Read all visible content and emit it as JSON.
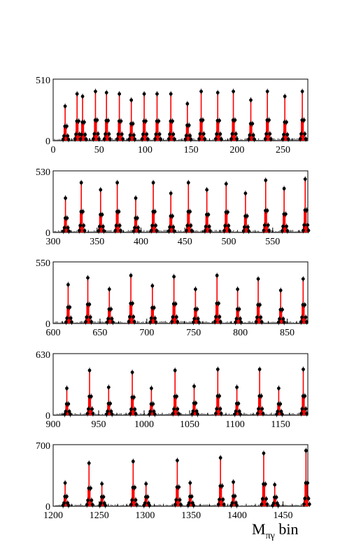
{
  "chart_data": [
    {
      "type": "bar",
      "panel": 1,
      "xlim": [
        0,
        277
      ],
      "ylim": [
        0,
        510
      ],
      "ymax_label": "510",
      "xticks": [
        0,
        50,
        100,
        150,
        200,
        250
      ],
      "xtick_labels": [
        "0",
        "50",
        "100",
        "150",
        "200",
        "250"
      ],
      "peaks": [
        {
          "x": 13,
          "height": 280
        },
        {
          "x": 26,
          "height": 380
        },
        {
          "x": 32,
          "height": 360
        },
        {
          "x": 46,
          "height": 400
        },
        {
          "x": 58,
          "height": 390
        },
        {
          "x": 72,
          "height": 380
        },
        {
          "x": 85,
          "height": 330
        },
        {
          "x": 99,
          "height": 380
        },
        {
          "x": 113,
          "height": 380
        },
        {
          "x": 128,
          "height": 380
        },
        {
          "x": 146,
          "height": 300
        },
        {
          "x": 161,
          "height": 400
        },
        {
          "x": 179,
          "height": 390
        },
        {
          "x": 196,
          "height": 400
        },
        {
          "x": 215,
          "height": 330
        },
        {
          "x": 233,
          "height": 400
        },
        {
          "x": 252,
          "height": 360
        },
        {
          "x": 271,
          "height": 400
        }
      ]
    },
    {
      "type": "bar",
      "panel": 2,
      "xlim": [
        300,
        590
      ],
      "ylim": [
        0,
        530
      ],
      "ymax_label": "530",
      "xticks": [
        300,
        350,
        400,
        450,
        500,
        550
      ],
      "xtick_labels": [
        "300",
        "350",
        "400",
        "450",
        "500",
        "550"
      ],
      "peaks": [
        {
          "x": 314,
          "height": 290
        },
        {
          "x": 332,
          "height": 420
        },
        {
          "x": 354,
          "height": 360
        },
        {
          "x": 373,
          "height": 420
        },
        {
          "x": 394,
          "height": 290
        },
        {
          "x": 414,
          "height": 420
        },
        {
          "x": 434,
          "height": 330
        },
        {
          "x": 454,
          "height": 420
        },
        {
          "x": 475,
          "height": 360
        },
        {
          "x": 497,
          "height": 410
        },
        {
          "x": 519,
          "height": 330
        },
        {
          "x": 542,
          "height": 440
        },
        {
          "x": 563,
          "height": 370
        },
        {
          "x": 587,
          "height": 450
        }
      ]
    },
    {
      "type": "bar",
      "panel": 3,
      "xlim": [
        600,
        872
      ],
      "ylim": [
        0,
        550
      ],
      "ymax_label": "550",
      "xticks": [
        600,
        650,
        700,
        750,
        800,
        850
      ],
      "xtick_labels": [
        "600",
        "650",
        "700",
        "750",
        "800",
        "850"
      ],
      "peaks": [
        {
          "x": 616,
          "height": 340
        },
        {
          "x": 637,
          "height": 400
        },
        {
          "x": 660,
          "height": 300
        },
        {
          "x": 683,
          "height": 420
        },
        {
          "x": 706,
          "height": 330
        },
        {
          "x": 729,
          "height": 410
        },
        {
          "x": 752,
          "height": 300
        },
        {
          "x": 775,
          "height": 420
        },
        {
          "x": 797,
          "height": 300
        },
        {
          "x": 819,
          "height": 390
        },
        {
          "x": 843,
          "height": 290
        },
        {
          "x": 867,
          "height": 390
        }
      ]
    },
    {
      "type": "bar",
      "panel": 4,
      "xlim": [
        900,
        1180
      ],
      "ylim": [
        0,
        630
      ],
      "ymax_label": "630",
      "xticks": [
        900,
        950,
        1000,
        1050,
        1100,
        1150
      ],
      "xtick_labels": [
        "900",
        "950",
        "1000",
        "1050",
        "1100",
        "1150"
      ],
      "peaks": [
        {
          "x": 915,
          "height": 270
        },
        {
          "x": 940,
          "height": 450
        },
        {
          "x": 961,
          "height": 280
        },
        {
          "x": 987,
          "height": 430
        },
        {
          "x": 1008,
          "height": 270
        },
        {
          "x": 1034,
          "height": 450
        },
        {
          "x": 1055,
          "height": 290
        },
        {
          "x": 1081,
          "height": 460
        },
        {
          "x": 1102,
          "height": 280
        },
        {
          "x": 1127,
          "height": 460
        },
        {
          "x": 1148,
          "height": 270
        },
        {
          "x": 1175,
          "height": 460
        }
      ]
    },
    {
      "type": "bar",
      "panel": 5,
      "xlim": [
        1200,
        1477
      ],
      "ylim": [
        0,
        700
      ],
      "ymax_label": "700",
      "xticks": [
        1200,
        1250,
        1300,
        1350,
        1400,
        1450
      ],
      "xtick_labels": [
        "1200",
        "1250",
        "1300",
        "1350",
        "1400",
        "1450"
      ],
      "peaks": [
        {
          "x": 1213,
          "height": 260
        },
        {
          "x": 1239,
          "height": 480
        },
        {
          "x": 1253,
          "height": 250
        },
        {
          "x": 1287,
          "height": 500
        },
        {
          "x": 1301,
          "height": 250
        },
        {
          "x": 1335,
          "height": 510
        },
        {
          "x": 1349,
          "height": 260
        },
        {
          "x": 1382,
          "height": 540
        },
        {
          "x": 1396,
          "height": 270
        },
        {
          "x": 1429,
          "height": 590
        },
        {
          "x": 1441,
          "height": 240
        },
        {
          "x": 1475,
          "height": 620
        }
      ]
    }
  ],
  "x_axis_title": {
    "main": "M",
    "subscript": "πγ",
    "suffix": " bin"
  },
  "colors": {
    "histogram": "#ff0000",
    "points": "#000000",
    "axes": "#000000"
  }
}
